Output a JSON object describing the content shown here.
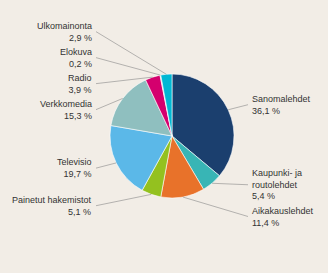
{
  "chart_data": {
    "type": "pie",
    "categories": [
      "Sanomalehdet",
      "Kaupunki- ja\nroutolehdet",
      "Aikakauslehdet",
      "Painetut hakemistot",
      "Televisio",
      "Verkkomedia",
      "Radio",
      "Elokuva",
      "Ulkomainonta"
    ],
    "values": [
      36.1,
      5.4,
      11.4,
      5.1,
      19.7,
      15.3,
      3.9,
      0.2,
      2.9
    ],
    "value_labels": [
      "36,1 %",
      "5,4 %",
      "11,4 %",
      "5,1 %",
      "19,7 %",
      "15,3 %",
      "3,9 %",
      "0,2 %",
      "2,9 %"
    ],
    "colors": [
      "#1b3f6e",
      "#38b5b5",
      "#e8722a",
      "#94c11f",
      "#5bb8e8",
      "#8fbfbf",
      "#d4006e",
      "#c8c8c8",
      "#00b8d4"
    ]
  }
}
